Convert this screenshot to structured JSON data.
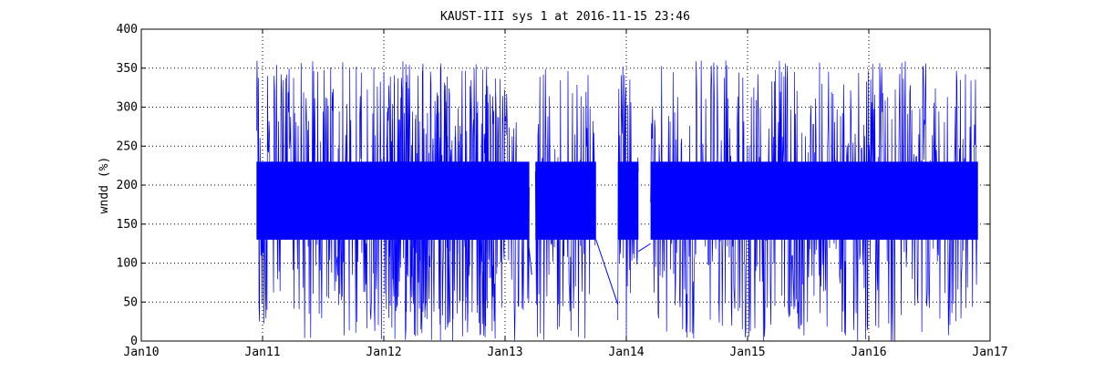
{
  "chart_data": {
    "type": "line",
    "title": "KAUST-III sys 1 at 2016-11-15 23:46",
    "xlabel": "",
    "ylabel": "wndd (%)",
    "xlim": [
      "Jan10",
      "Jan17"
    ],
    "ylim": [
      0,
      400
    ],
    "x_ticks": [
      "Jan10",
      "Jan11",
      "Jan12",
      "Jan13",
      "Jan14",
      "Jan15",
      "Jan16",
      "Jan17"
    ],
    "y_ticks": [
      0,
      50,
      100,
      150,
      200,
      250,
      300,
      350,
      400
    ],
    "grid": true,
    "grid_style": "dotted",
    "line_color": "#0000ff",
    "series": [
      {
        "segments": [
          {
            "x_start": "Jan11",
            "x_end": "Jan12",
            "x_start_frac": -0.05,
            "x_end_frac": 0.95,
            "y_low": 0,
            "y_high": 360,
            "y_core_low": 130,
            "y_core_high": 230
          },
          {
            "x_start": "Jan12",
            "x_end": "Jan13",
            "x_start_frac": 0.0,
            "x_end_frac": 0.2,
            "y_low": 0,
            "y_high": 360,
            "y_core_low": 130,
            "y_core_high": 230
          },
          {
            "x_start": "Jan13",
            "x_end": "Jan13",
            "x_start_frac": 0.25,
            "x_end_frac": 0.75,
            "y_low": 0,
            "y_high": 355,
            "y_core_low": 130,
            "y_core_high": 230
          },
          {
            "x_start": "Jan13",
            "x_end": "Jan14",
            "x_start_frac": 0.93,
            "x_end_frac": 0.1,
            "y_low": 0,
            "y_high": 360,
            "y_core_low": 130,
            "y_core_high": 230
          },
          {
            "x_start": "Jan14",
            "x_end": "Jan16",
            "x_start_frac": 0.2,
            "x_end_frac": 0.9,
            "y_low": 0,
            "y_high": 360,
            "y_core_low": 130,
            "y_core_high": 230
          }
        ],
        "bridges": [
          {
            "x0": "Jan13",
            "x0_frac": 0.17,
            "y0": 160,
            "x1": "Jan13",
            "x1_frac": 0.22,
            "y1": 85
          },
          {
            "x0": "Jan13",
            "x0_frac": 0.75,
            "y0": 130,
            "x1": "Jan13",
            "x1_frac": 0.93,
            "y1": 47
          },
          {
            "x0": "Jan14",
            "x0_frac": 0.1,
            "y0": 115,
            "x1": "Jan14",
            "x1_frac": 0.2,
            "y1": 125
          }
        ]
      }
    ]
  }
}
